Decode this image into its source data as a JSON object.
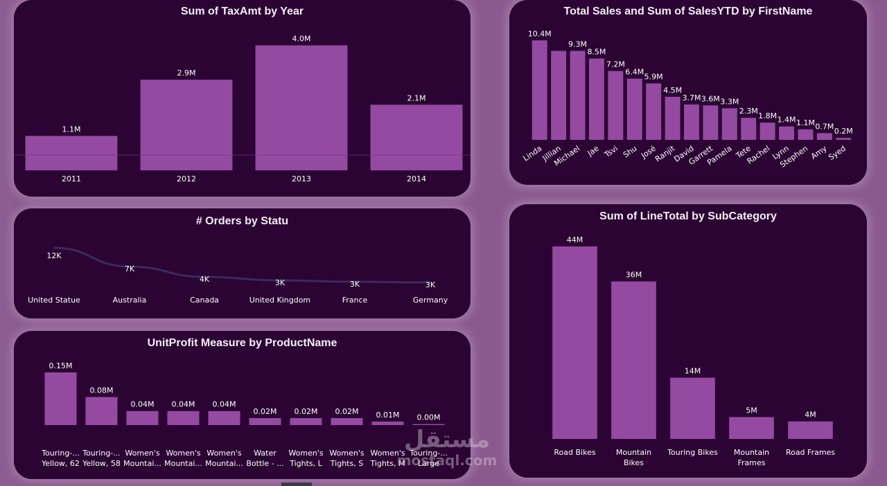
{
  "colors": {
    "card_bg": "#2b0433",
    "bar": "#954aa2",
    "line": "#3a2b5c",
    "page_bg": "#8a5a8f"
  },
  "watermark": {
    "arabic": "مستقل",
    "latin": "mostaql.com"
  },
  "chart_data": [
    {
      "id": "taxamt",
      "type": "bar",
      "title": "Sum of TaxAmt by Year",
      "categories": [
        "2011",
        "2012",
        "2013",
        "2014"
      ],
      "values": [
        1.1,
        2.9,
        4.0,
        2.1
      ],
      "labels": [
        "1.1M",
        "2.9M",
        "4.0M",
        "2.1M"
      ],
      "units": "M",
      "ylim": [
        0,
        4.3
      ]
    },
    {
      "id": "sales",
      "type": "bar",
      "title": "Total Sales and Sum of SalesYTD by FirstName",
      "categories": [
        "Linda",
        "Jillian",
        "Michael",
        "Jae",
        "Tsvi",
        "Shu",
        "José",
        "Ranjit",
        "David",
        "Garrett",
        "Pamela",
        "Tete",
        "Rachel",
        "Lynn",
        "Stephen",
        "Amy",
        "Syed"
      ],
      "values": [
        10.4,
        9.3,
        9.3,
        8.5,
        7.2,
        6.4,
        5.9,
        4.5,
        3.7,
        3.6,
        3.3,
        2.3,
        1.8,
        1.4,
        1.1,
        0.7,
        0.2
      ],
      "labels": [
        "10.4M",
        "",
        "9.3M",
        "8.5M",
        "7.2M",
        "6.4M",
        "5.9M",
        "4.5M",
        "3.7M",
        "3.6M",
        "3.3M",
        "2.3M",
        "1.8M",
        "1.4M",
        "1.1M",
        "0.7M",
        "0.2M"
      ],
      "units": "M",
      "ylim": [
        0,
        11
      ]
    },
    {
      "id": "orders",
      "type": "line",
      "title": "# Orders by Statu",
      "categories": [
        "United Statue",
        "Australia",
        "Canada",
        "United Kingdom",
        "France",
        "Germany"
      ],
      "values": [
        12,
        7,
        4,
        3,
        3,
        3
      ],
      "labels": [
        "12K",
        "7K",
        "4K",
        "3K",
        "3K",
        "3K"
      ],
      "units": "K",
      "ylim": [
        0,
        12
      ]
    },
    {
      "id": "unitprofit",
      "type": "bar",
      "title": "UnitProfit Measure by ProductName",
      "categories": [
        [
          "Touring-...",
          "Yellow, 62"
        ],
        [
          "Touring-...",
          "Yellow, 58"
        ],
        [
          "Women's",
          "Mountai..."
        ],
        [
          "Women's",
          "Mountai..."
        ],
        [
          "Women's",
          "Mountai..."
        ],
        [
          "Water",
          "Bottle - ..."
        ],
        [
          "Women's",
          "Tights, L"
        ],
        [
          "Women's",
          "Tights, S"
        ],
        [
          "Women's",
          "Tights, M"
        ],
        [
          "Touring-...",
          "Large"
        ]
      ],
      "values": [
        0.15,
        0.08,
        0.04,
        0.04,
        0.04,
        0.02,
        0.02,
        0.02,
        0.01,
        0.0
      ],
      "labels": [
        "0.15M",
        "0.08M",
        "0.04M",
        "0.04M",
        "0.04M",
        "0.02M",
        "0.02M",
        "0.02M",
        "0.01M",
        "0.00M"
      ],
      "units": "M",
      "ylim": [
        0,
        0.15
      ]
    },
    {
      "id": "linetotal",
      "type": "bar",
      "title": "Sum of LineTotal by SubCategory",
      "categories": [
        [
          "Road Bikes"
        ],
        [
          "Mountain",
          "Bikes"
        ],
        [
          "Touring Bikes"
        ],
        [
          "Mountain",
          "Frames"
        ],
        [
          "Road Frames"
        ]
      ],
      "values": [
        44,
        36,
        14,
        5,
        4
      ],
      "labels": [
        "44M",
        "36M",
        "14M",
        "5M",
        "4M"
      ],
      "units": "M",
      "ylim": [
        0,
        44
      ]
    }
  ]
}
